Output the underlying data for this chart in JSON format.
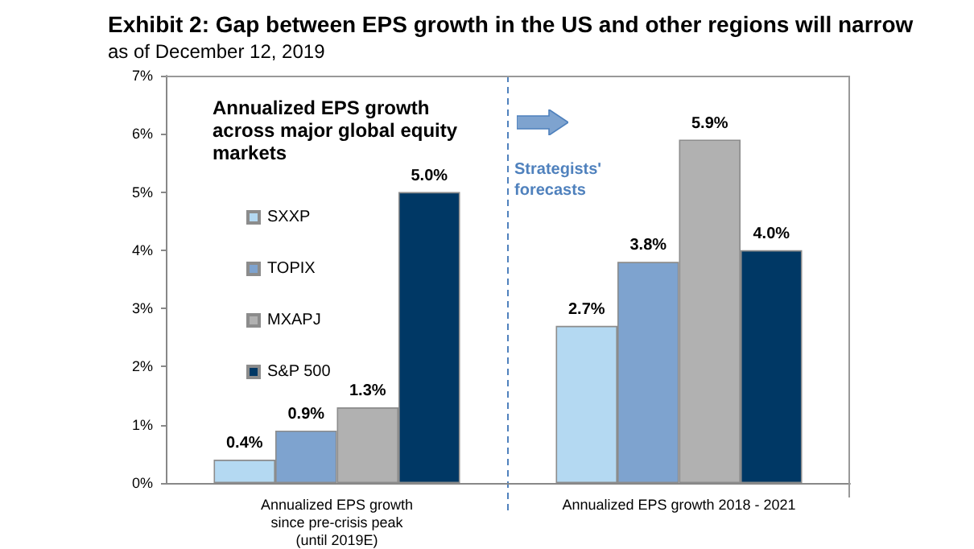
{
  "chart_data": {
    "type": "bar",
    "title": "Exhibit 2: Gap between EPS growth in the US and other regions will narrow",
    "subtitle": "as of December 12, 2019",
    "categories": [
      "Annualized EPS growth\nsince pre-crisis peak\n(until 2019E)",
      "Annualized EPS growth 2018 - 2021"
    ],
    "series": [
      {
        "name": "SXXP",
        "color": "#b4d9f2",
        "values": [
          0.4,
          2.7
        ],
        "value_labels": [
          "0.4%",
          "2.7%"
        ]
      },
      {
        "name": "TOPIX",
        "color": "#7ea3cf",
        "values": [
          0.9,
          3.8
        ],
        "value_labels": [
          "0.9%",
          "3.8%"
        ]
      },
      {
        "name": "MXAPJ",
        "color": "#b1b1b1",
        "values": [
          1.3,
          5.9
        ],
        "value_labels": [
          "1.3%",
          "5.9%"
        ]
      },
      {
        "name": "S&P 500",
        "color": "#003865",
        "values": [
          5.0,
          4.0
        ],
        "value_labels": [
          "5.0%",
          "4.0%"
        ]
      }
    ],
    "ylim": [
      0,
      7
    ],
    "yticks": [
      {
        "value": 0,
        "label": "0%"
      },
      {
        "value": 1,
        "label": "1%"
      },
      {
        "value": 2,
        "label": "2%"
      },
      {
        "value": 3,
        "label": "3%"
      },
      {
        "value": 4,
        "label": "4%"
      },
      {
        "value": 5,
        "label": "5%"
      },
      {
        "value": 6,
        "label": "6%"
      },
      {
        "value": 7,
        "label": "7%"
      }
    ],
    "grid": false,
    "legend": "left",
    "ref_lines": [
      {
        "axis": "x",
        "value": "Annualized EPS growth 2018 - 2021",
        "label": "Strategists'\nforecasts",
        "color": "#4f81bd",
        "line_style": "dashed"
      }
    ],
    "annotations": [
      "Annualized EPS growth\nacross major global equity\nmarkets"
    ]
  }
}
